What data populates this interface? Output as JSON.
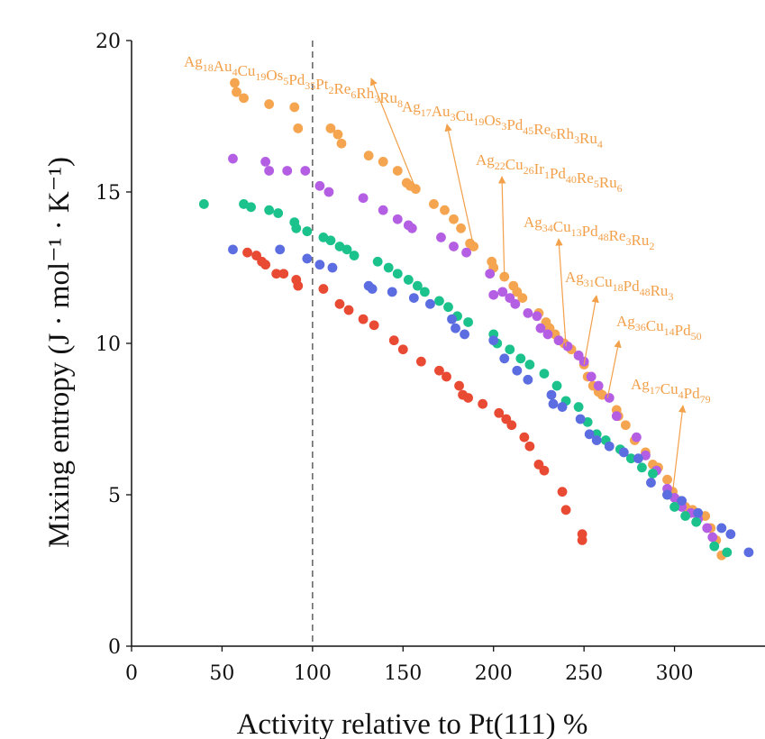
{
  "chart_data": {
    "type": "scatter",
    "title": "",
    "xlabel": "Activity relative to Pt(111) %",
    "ylabel": "Mixing entropy (J · mol⁻¹ · K⁻¹)",
    "xlim": [
      0,
      350
    ],
    "ylim": [
      0,
      20
    ],
    "xticks": [
      0,
      50,
      100,
      150,
      200,
      250,
      300
    ],
    "yticks": [
      0,
      5,
      10,
      15,
      20
    ],
    "grid": false,
    "reference_line": {
      "x": 100,
      "style": "dashed"
    },
    "colors": {
      "orange": "#f5a54f",
      "purple": "#b45fe3",
      "green": "#1cc28c",
      "blue": "#5b6de0",
      "red": "#e94a33",
      "annotation": "#f2a04a"
    },
    "series": [
      {
        "name": "orange",
        "color": "#f5a54f",
        "points": [
          [
            57,
            18.6
          ],
          [
            58,
            18.3
          ],
          [
            62,
            18.1
          ],
          [
            76,
            17.9
          ],
          [
            90,
            17.8
          ],
          [
            92,
            17.1
          ],
          [
            110,
            17.1
          ],
          [
            114,
            16.9
          ],
          [
            116,
            16.6
          ],
          [
            131,
            16.2
          ],
          [
            139,
            16.0
          ],
          [
            147,
            15.7
          ],
          [
            152,
            15.3
          ],
          [
            154,
            15.2
          ],
          [
            157,
            15.1
          ],
          [
            167,
            14.6
          ],
          [
            173,
            14.4
          ],
          [
            178,
            14.1
          ],
          [
            182,
            13.8
          ],
          [
            187,
            13.3
          ],
          [
            189,
            13.2
          ],
          [
            199,
            12.7
          ],
          [
            200,
            12.5
          ],
          [
            206,
            12.2
          ],
          [
            211,
            11.9
          ],
          [
            213,
            11.7
          ],
          [
            216,
            11.5
          ],
          [
            225,
            11.0
          ],
          [
            229,
            10.7
          ],
          [
            231,
            10.5
          ],
          [
            234,
            10.3
          ],
          [
            236,
            10.1
          ],
          [
            239,
            10.0
          ],
          [
            243,
            9.8
          ],
          [
            247,
            9.6
          ],
          [
            250,
            9.3
          ],
          [
            252,
            8.9
          ],
          [
            255,
            8.6
          ],
          [
            258,
            8.4
          ],
          [
            260,
            8.3
          ],
          [
            268,
            7.8
          ],
          [
            269,
            7.6
          ],
          [
            273,
            7.3
          ],
          [
            278,
            6.8
          ],
          [
            284,
            6.4
          ],
          [
            288,
            6.0
          ],
          [
            291,
            5.9
          ],
          [
            296,
            5.5
          ],
          [
            299,
            5.1
          ],
          [
            303,
            4.8
          ],
          [
            306,
            4.6
          ],
          [
            310,
            4.5
          ],
          [
            317,
            4.3
          ],
          [
            320,
            3.9
          ],
          [
            323,
            3.5
          ],
          [
            326,
            3.0
          ]
        ]
      },
      {
        "name": "purple",
        "color": "#b45fe3",
        "points": [
          [
            56,
            16.1
          ],
          [
            74,
            16.0
          ],
          [
            76,
            15.7
          ],
          [
            86,
            15.7
          ],
          [
            96,
            15.7
          ],
          [
            104,
            15.2
          ],
          [
            109,
            15.0
          ],
          [
            128,
            14.8
          ],
          [
            139,
            14.4
          ],
          [
            147,
            14.1
          ],
          [
            153,
            13.9
          ],
          [
            155,
            13.8
          ],
          [
            171,
            13.5
          ],
          [
            178,
            13.2
          ],
          [
            185,
            13.0
          ],
          [
            198,
            12.3
          ],
          [
            200,
            11.6
          ],
          [
            205,
            11.7
          ],
          [
            209,
            11.5
          ],
          [
            212,
            11.3
          ],
          [
            219,
            11.0
          ],
          [
            224,
            10.9
          ],
          [
            226,
            10.5
          ],
          [
            230,
            10.3
          ],
          [
            236,
            10.1
          ],
          [
            241,
            9.9
          ],
          [
            247,
            9.6
          ],
          [
            250,
            9.4
          ],
          [
            254,
            8.9
          ],
          [
            258,
            8.6
          ],
          [
            264,
            8.2
          ],
          [
            268,
            7.6
          ],
          [
            279,
            6.9
          ],
          [
            284,
            6.3
          ],
          [
            290,
            5.8
          ],
          [
            296,
            5.2
          ],
          [
            300,
            4.9
          ],
          [
            304,
            4.6
          ],
          [
            309,
            4.4
          ],
          [
            313,
            4.2
          ],
          [
            318,
            3.9
          ],
          [
            321,
            3.6
          ]
        ]
      },
      {
        "name": "green",
        "color": "#1cc28c",
        "points": [
          [
            40,
            14.6
          ],
          [
            62,
            14.6
          ],
          [
            66,
            14.5
          ],
          [
            76,
            14.4
          ],
          [
            81,
            14.3
          ],
          [
            90,
            14.0
          ],
          [
            91,
            13.8
          ],
          [
            97,
            13.7
          ],
          [
            106,
            13.5
          ],
          [
            110,
            13.4
          ],
          [
            115,
            13.2
          ],
          [
            119,
            13.1
          ],
          [
            123,
            12.9
          ],
          [
            136,
            12.7
          ],
          [
            142,
            12.5
          ],
          [
            147,
            12.3
          ],
          [
            153,
            12.1
          ],
          [
            158,
            11.9
          ],
          [
            162,
            11.7
          ],
          [
            170,
            11.4
          ],
          [
            175,
            11.2
          ],
          [
            180,
            10.9
          ],
          [
            186,
            10.7
          ],
          [
            200,
            10.3
          ],
          [
            202,
            10.0
          ],
          [
            209,
            9.8
          ],
          [
            215,
            9.5
          ],
          [
            220,
            9.3
          ],
          [
            228,
            9.0
          ],
          [
            235,
            8.6
          ],
          [
            240,
            8.1
          ],
          [
            247,
            7.9
          ],
          [
            252,
            7.4
          ],
          [
            257,
            7.0
          ],
          [
            262,
            6.8
          ],
          [
            270,
            6.5
          ],
          [
            276,
            6.2
          ],
          [
            282,
            5.9
          ],
          [
            288,
            5.7
          ],
          [
            296,
            5.0
          ],
          [
            300,
            4.6
          ],
          [
            306,
            4.3
          ],
          [
            312,
            4.1
          ],
          [
            322,
            3.3
          ],
          [
            329,
            3.1
          ]
        ]
      },
      {
        "name": "blue",
        "color": "#5b6de0",
        "points": [
          [
            56,
            13.1
          ],
          [
            82,
            13.1
          ],
          [
            97,
            12.8
          ],
          [
            104,
            12.6
          ],
          [
            111,
            12.5
          ],
          [
            131,
            11.9
          ],
          [
            133,
            11.8
          ],
          [
            144,
            11.7
          ],
          [
            156,
            11.5
          ],
          [
            165,
            11.3
          ],
          [
            177,
            10.8
          ],
          [
            179,
            10.5
          ],
          [
            184,
            10.3
          ],
          [
            200,
            10.1
          ],
          [
            206,
            9.5
          ],
          [
            213,
            9.1
          ],
          [
            219,
            8.8
          ],
          [
            232,
            8.3
          ],
          [
            233,
            8.0
          ],
          [
            238,
            7.9
          ],
          [
            248,
            7.5
          ],
          [
            253,
            7.0
          ],
          [
            257,
            6.8
          ],
          [
            264,
            6.6
          ],
          [
            272,
            6.4
          ],
          [
            280,
            6.2
          ],
          [
            287,
            5.4
          ],
          [
            296,
            5.0
          ],
          [
            304,
            4.8
          ],
          [
            313,
            4.4
          ],
          [
            326,
            3.9
          ],
          [
            331,
            3.7
          ],
          [
            341,
            3.1
          ]
        ]
      },
      {
        "name": "red",
        "color": "#e94a33",
        "points": [
          [
            64,
            13.0
          ],
          [
            69,
            12.9
          ],
          [
            72,
            12.7
          ],
          [
            74,
            12.6
          ],
          [
            80,
            12.3
          ],
          [
            84,
            12.3
          ],
          [
            91,
            12.1
          ],
          [
            92,
            11.9
          ],
          [
            106,
            11.8
          ],
          [
            115,
            11.3
          ],
          [
            120,
            11.1
          ],
          [
            128,
            10.8
          ],
          [
            134,
            10.6
          ],
          [
            145,
            10.1
          ],
          [
            150,
            9.8
          ],
          [
            160,
            9.4
          ],
          [
            170,
            9.1
          ],
          [
            174,
            8.9
          ],
          [
            181,
            8.6
          ],
          [
            183,
            8.3
          ],
          [
            186,
            8.2
          ],
          [
            194,
            8.0
          ],
          [
            203,
            7.7
          ],
          [
            207,
            7.5
          ],
          [
            210,
            7.3
          ],
          [
            217,
            6.9
          ],
          [
            220,
            6.6
          ],
          [
            225,
            6.0
          ],
          [
            228,
            5.8
          ],
          [
            238,
            5.1
          ],
          [
            240,
            4.5
          ],
          [
            249,
            3.7
          ],
          [
            249,
            3.5
          ]
        ]
      }
    ],
    "annotations": [
      {
        "parts": [
          [
            "Ag",
            "18"
          ],
          [
            "Au",
            "4"
          ],
          [
            "Cu",
            "19"
          ],
          [
            "Os",
            "5"
          ],
          [
            "Pd",
            "35"
          ],
          [
            "Pt",
            "2"
          ],
          [
            "Re",
            "6"
          ],
          [
            "Rh",
            "3"
          ],
          [
            "Ru",
            "8"
          ]
        ],
        "target": [
          157,
          15.1
        ]
      },
      {
        "parts": [
          [
            "Ag",
            "17"
          ],
          [
            "Au",
            "3"
          ],
          [
            "Cu",
            "19"
          ],
          [
            "Os",
            "3"
          ],
          [
            "Pd",
            "45"
          ],
          [
            "Re",
            "6"
          ],
          [
            "Rh",
            "3"
          ],
          [
            "Ru",
            "4"
          ]
        ],
        "target": [
          189,
          13.2
        ]
      },
      {
        "parts": [
          [
            "Ag",
            "22"
          ],
          [
            "Cu",
            "26"
          ],
          [
            "Ir",
            "1"
          ],
          [
            "Pd",
            "40"
          ],
          [
            "Re",
            "5"
          ],
          [
            "Ru",
            "6"
          ]
        ],
        "target": [
          206,
          12.2
        ]
      },
      {
        "parts": [
          [
            "Ag",
            "34"
          ],
          [
            "Cu",
            "13"
          ],
          [
            "Pd",
            "48"
          ],
          [
            "Re",
            "3"
          ],
          [
            "Ru",
            "2"
          ]
        ],
        "target": [
          240,
          9.9
        ]
      },
      {
        "parts": [
          [
            "Ag",
            "31"
          ],
          [
            "Cu",
            "18"
          ],
          [
            "Pd",
            "48"
          ],
          [
            "Ru",
            "3"
          ]
        ],
        "target": [
          250,
          9.3
        ]
      },
      {
        "parts": [
          [
            "Ag",
            "36"
          ],
          [
            "Cu",
            "14"
          ],
          [
            "Pd",
            "50"
          ]
        ],
        "target": [
          263,
          8.2
        ]
      },
      {
        "parts": [
          [
            "Ag",
            "17"
          ],
          [
            "Cu",
            "4"
          ],
          [
            "Pd",
            "79"
          ]
        ],
        "target": [
          299,
          5.1
        ]
      }
    ]
  }
}
